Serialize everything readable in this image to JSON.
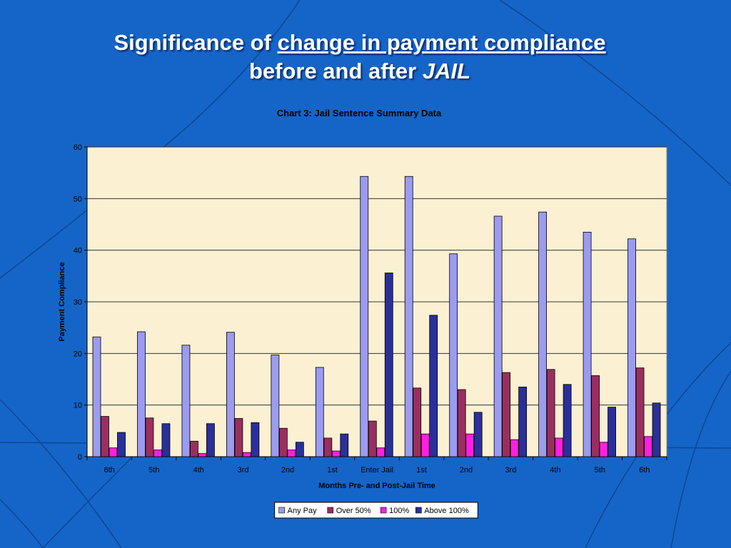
{
  "slide": {
    "title_prefix": "Significance of ",
    "title_underlined": "change in payment compliance",
    "subtitle_prefix": "before and after ",
    "subtitle_italic": "JAIL"
  },
  "colors": {
    "background": "#1565c8",
    "plot_background": "#fbf1d2",
    "Any Pay": "#9b9bf0",
    "Over 50%": "#9a2f5f",
    "100%": "#ff1fe0",
    "Above 100%": "#2a2f9a"
  },
  "chart_data": {
    "type": "bar",
    "title": "Chart 3:  Jail Sentence Summary Data",
    "xlabel": "Months Pre- and Post-Jail Time",
    "ylabel": "Payment Compliance",
    "ylim": [
      0,
      60
    ],
    "yticks": [
      0,
      10,
      20,
      30,
      40,
      50,
      60
    ],
    "grid": true,
    "legend_position": "bottom",
    "categories": [
      "6th",
      "5th",
      "4th",
      "3rd",
      "2nd",
      "1st",
      "Enter Jail",
      "1st",
      "2nd",
      "3rd",
      "4th",
      "5th",
      "6th"
    ],
    "series": [
      {
        "name": "Any Pay",
        "values": [
          23.2,
          24.2,
          21.6,
          24.1,
          19.7,
          17.3,
          54.3,
          54.3,
          39.3,
          46.6,
          47.4,
          43.5,
          42.2
        ]
      },
      {
        "name": "Over 50%",
        "values": [
          7.8,
          7.5,
          3.0,
          7.4,
          5.5,
          3.6,
          6.9,
          13.3,
          13.0,
          16.3,
          16.9,
          15.7,
          17.2
        ]
      },
      {
        "name": "100%",
        "values": [
          1.7,
          1.3,
          0.6,
          0.8,
          1.3,
          1.1,
          1.7,
          4.4,
          4.4,
          3.3,
          3.6,
          2.8,
          3.9
        ]
      },
      {
        "name": "Above 100%",
        "values": [
          4.7,
          6.4,
          6.4,
          6.6,
          2.8,
          4.4,
          35.6,
          27.4,
          8.6,
          13.5,
          14.0,
          9.6,
          10.4
        ]
      }
    ]
  }
}
